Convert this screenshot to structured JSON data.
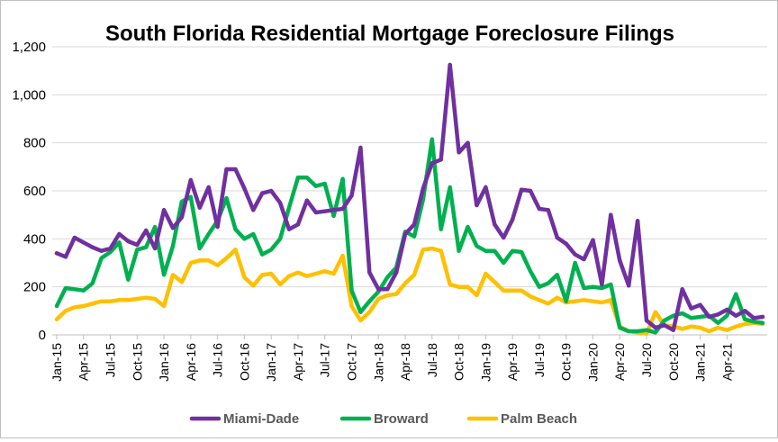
{
  "chart_data": {
    "type": "line",
    "title": "South Florida Residential Mortgage Foreclosure Filings",
    "xlabel": "",
    "ylabel": "",
    "ylim": [
      0,
      1200
    ],
    "yticks": [
      0,
      200,
      400,
      600,
      800,
      1000,
      1200
    ],
    "ytick_labels": [
      "0",
      "200",
      "400",
      "600",
      "800",
      "1,000",
      "1,200"
    ],
    "grid": "horizontal",
    "legend": "bottom",
    "x_tick_labels": [
      "Jan-15",
      "Apr-15",
      "Jul-15",
      "Oct-15",
      "Jan-16",
      "Apr-16",
      "Jul-16",
      "Oct-16",
      "Jan-17",
      "Apr-17",
      "Jul-17",
      "Oct-17",
      "Jan-18",
      "Apr-18",
      "Jul-18",
      "Oct-18",
      "Jan-19",
      "Apr-19",
      "Jul-19",
      "Oct-19",
      "Jan-20",
      "Apr-20",
      "Jul-20",
      "Oct-20",
      "Jan-21",
      "Apr-21"
    ],
    "x_start": "2015-01",
    "x_end": "2021-06",
    "series": [
      {
        "name": "Miami-Dade",
        "color": "#7030a0",
        "values": [
          340,
          325,
          405,
          385,
          365,
          350,
          360,
          420,
          390,
          375,
          435,
          360,
          520,
          445,
          490,
          645,
          530,
          615,
          450,
          690,
          690,
          610,
          520,
          590,
          600,
          550,
          440,
          460,
          560,
          510,
          515,
          520,
          525,
          580,
          780,
          260,
          190,
          190,
          260,
          420,
          460,
          610,
          715,
          730,
          1125,
          760,
          800,
          540,
          615,
          460,
          405,
          480,
          605,
          600,
          525,
          520,
          405,
          380,
          335,
          315,
          395,
          210,
          500,
          310,
          205,
          475,
          60,
          30,
          40,
          20,
          190,
          110,
          125,
          75,
          85,
          105,
          80,
          100,
          70,
          75
        ],
        "markers": true
      },
      {
        "name": "Broward",
        "color": "#00b050",
        "values": [
          120,
          195,
          190,
          185,
          215,
          320,
          345,
          385,
          230,
          355,
          365,
          450,
          250,
          370,
          555,
          575,
          360,
          420,
          475,
          570,
          440,
          400,
          420,
          335,
          355,
          400,
          530,
          655,
          655,
          620,
          630,
          495,
          650,
          185,
          95,
          140,
          180,
          240,
          280,
          430,
          410,
          565,
          815,
          440,
          615,
          350,
          450,
          370,
          350,
          350,
          300,
          350,
          345,
          265,
          200,
          215,
          250,
          140,
          300,
          195,
          200,
          195,
          210,
          30,
          15,
          15,
          20,
          10,
          60,
          80,
          90,
          70,
          75,
          80,
          50,
          80,
          170,
          65,
          55,
          50
        ]
      },
      {
        "name": "Palm Beach",
        "color": "#ffc000",
        "values": [
          65,
          100,
          115,
          120,
          130,
          140,
          140,
          145,
          145,
          150,
          155,
          150,
          120,
          250,
          220,
          300,
          310,
          310,
          290,
          320,
          355,
          240,
          205,
          250,
          255,
          210,
          245,
          260,
          245,
          255,
          265,
          255,
          330,
          120,
          60,
          95,
          150,
          165,
          170,
          215,
          250,
          355,
          360,
          350,
          210,
          200,
          200,
          165,
          255,
          220,
          185,
          185,
          185,
          160,
          145,
          130,
          155,
          135,
          140,
          145,
          140,
          135,
          145,
          35,
          15,
          10,
          5,
          95,
          40,
          35,
          25,
          35,
          30,
          15,
          30,
          20,
          35,
          45,
          50,
          45
        ]
      }
    ]
  }
}
